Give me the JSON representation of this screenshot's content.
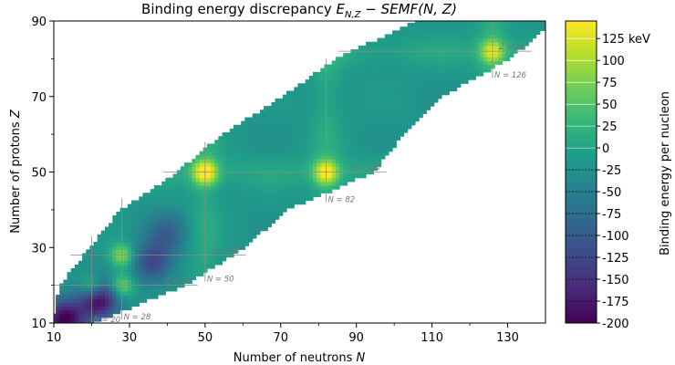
{
  "chart_data": {
    "type": "heatmap",
    "title": "Binding energy discrepancy E_{N,Z} − SEMF(N,Z)",
    "title_parts": {
      "prefix": "Binding energy discrepancy ",
      "E": "E",
      "E_sub": "N,Z",
      "minus": " − ",
      "func": "SEMF",
      "args_open": "(",
      "N": "N",
      "comma": ", ",
      "Z": "Z",
      "args_close": ")"
    },
    "xlabel": "Number of neutrons",
    "xlabel_var": "N",
    "ylabel": "Number of protons",
    "ylabel_var": "Z",
    "xlim": [
      10,
      140
    ],
    "ylim": [
      10,
      90
    ],
    "xticks": [
      "10",
      "30",
      "50",
      "70",
      "90",
      "110",
      "130"
    ],
    "yticks": [
      "10",
      "30",
      "50",
      "70",
      "90"
    ],
    "colorbar": {
      "label": "Binding energy per nucleon",
      "range": [
        -200,
        145
      ],
      "ticks": [
        "-200",
        "-175",
        "-150",
        "-125",
        "-100",
        "-75",
        "-50",
        "-25",
        "0",
        "25",
        "50",
        "75",
        "100",
        "125 keV"
      ],
      "tick_values": [
        -200,
        -175,
        -150,
        -125,
        -100,
        -75,
        -50,
        -25,
        0,
        25,
        50,
        75,
        100,
        125
      ],
      "colormap": "viridis"
    },
    "magic_numbers": {
      "neutron": [
        {
          "label": "N = 20",
          "value": 20
        },
        {
          "label": "N = 28",
          "value": 28
        },
        {
          "label": "N = 50",
          "value": 50
        },
        {
          "label": "N = 82",
          "value": 82
        },
        {
          "label": "N = 126",
          "value": 126
        }
      ],
      "proton": [
        {
          "label": "Z = 20",
          "value": 20
        },
        {
          "label": "Z = 28",
          "value": 28
        },
        {
          "label": "Z = 50",
          "value": 50
        },
        {
          "label": "Z = 82",
          "value": 82
        }
      ]
    },
    "peaks": [
      {
        "N": 50,
        "Z": 50,
        "value": 135
      },
      {
        "N": 82,
        "Z": 50,
        "value": 120
      },
      {
        "N": 126,
        "Z": 82,
        "value": 100
      },
      {
        "N": 28,
        "Z": 28,
        "value": 90
      },
      {
        "N": 28,
        "Z": 20,
        "value": 85
      },
      {
        "N": 20,
        "Z": 20,
        "value": 70
      }
    ],
    "troughs": [
      {
        "N": 22,
        "Z": 16,
        "value": -190
      },
      {
        "N": 13,
        "Z": 11,
        "value": -200
      },
      {
        "N": 36,
        "Z": 26,
        "value": -130
      },
      {
        "N": 40,
        "Z": 34,
        "value": -90
      }
    ],
    "background_value": -20,
    "chart_band": [
      {
        "Z": 10,
        "Nmin": 10,
        "Nmax": 20
      },
      {
        "Z": 20,
        "Nmin": 12,
        "Nmax": 44
      },
      {
        "Z": 30,
        "Nmin": 20,
        "Nmax": 60
      },
      {
        "Z": 40,
        "Nmin": 28,
        "Nmax": 71
      },
      {
        "Z": 50,
        "Nmin": 43,
        "Nmax": 94
      },
      {
        "Z": 60,
        "Nmin": 55,
        "Nmax": 102
      },
      {
        "Z": 70,
        "Nmin": 71,
        "Nmax": 112
      },
      {
        "Z": 80,
        "Nmin": 85,
        "Nmax": 130
      },
      {
        "Z": 90,
        "Nmin": 106,
        "Nmax": 142
      }
    ]
  }
}
